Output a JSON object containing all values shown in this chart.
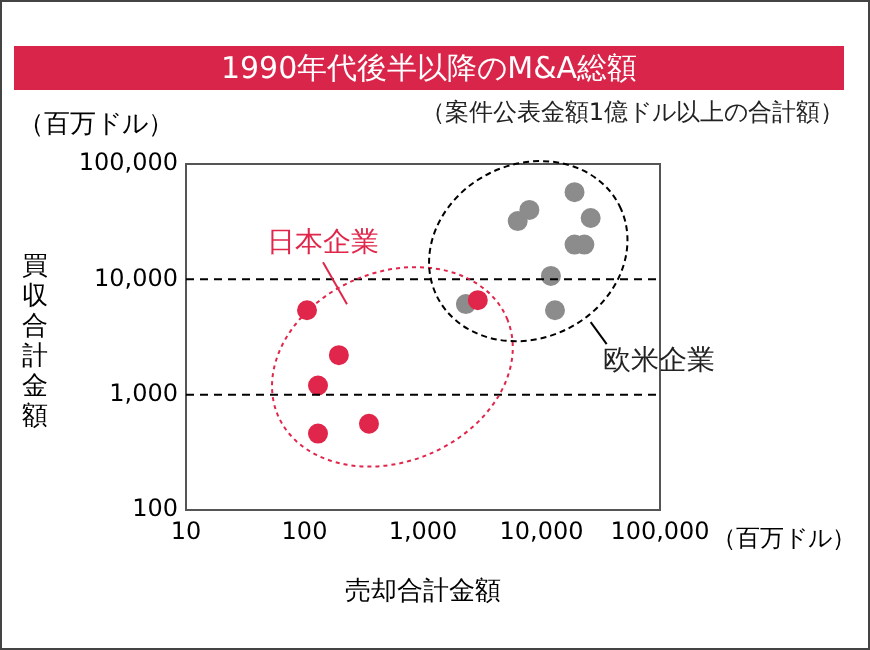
{
  "chart_data": {
    "type": "scatter",
    "title": "1990年代後半以降のM&A総額",
    "subtitle": "（案件公表金額1億ドル以上の合計額）",
    "xlabel": "売却合計金額",
    "ylabel": "買収合計金額",
    "log": "xy",
    "grid": false,
    "legend": false,
    "marker": "circle",
    "annotations": [
      "（百万ドル）",
      "（百万ドル）"
    ],
    "xlim": [
      10,
      100000
    ],
    "xticks": [
      10,
      100,
      {
        "value": 1000,
        "label": "1,000"
      },
      {
        "value": 10000,
        "label": "10,000"
      },
      {
        "value": 100000,
        "label": "100,000"
      }
    ],
    "ylim": [
      100,
      100000
    ],
    "yticks": [
      100,
      {
        "value": 1000,
        "label": "1,000"
      },
      {
        "value": 10000,
        "label": "10,000"
      },
      {
        "value": 100000,
        "label": "100,000"
      }
    ],
    "ref_lines": [
      {
        "axis": "y",
        "value": 10000,
        "line_style": "dashed",
        "color": "#000000"
      },
      {
        "axis": "y",
        "value": 1000,
        "line_style": "dashed",
        "color": "#000000"
      }
    ],
    "series": [
      {
        "name": "日本企業",
        "color": "#e0264a",
        "x": [
          105,
          195,
          130,
          130,
          350,
          2900
        ],
        "values": [
          5400,
          2200,
          1200,
          460,
          560,
          6600
        ]
      },
      {
        "name": "欧米企業",
        "color": "#8c8c8c",
        "x": [
          2300,
          6300,
          7900,
          19000,
          26000,
          19000,
          23000,
          12000,
          13000
        ],
        "values": [
          6100,
          32000,
          40000,
          57000,
          34000,
          20000,
          20000,
          10700,
          5400
        ]
      }
    ]
  }
}
